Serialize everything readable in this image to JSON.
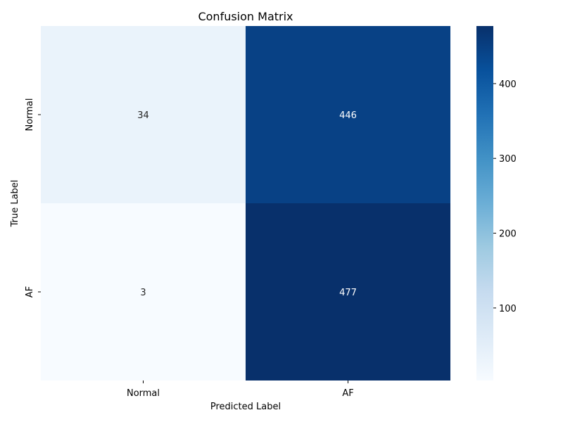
{
  "chart_data": {
    "type": "heatmap",
    "title": "Confusion Matrix",
    "xlabel": "Predicted Label",
    "ylabel": "True Label",
    "x_categories": [
      "Normal",
      "AF"
    ],
    "y_categories": [
      "Normal",
      "AF"
    ],
    "values": [
      [
        34,
        446
      ],
      [
        3,
        477
      ]
    ],
    "colormap": "Blues",
    "colorbar": {
      "min": 3,
      "max": 477,
      "ticks": [
        100,
        200,
        300,
        400
      ]
    }
  }
}
